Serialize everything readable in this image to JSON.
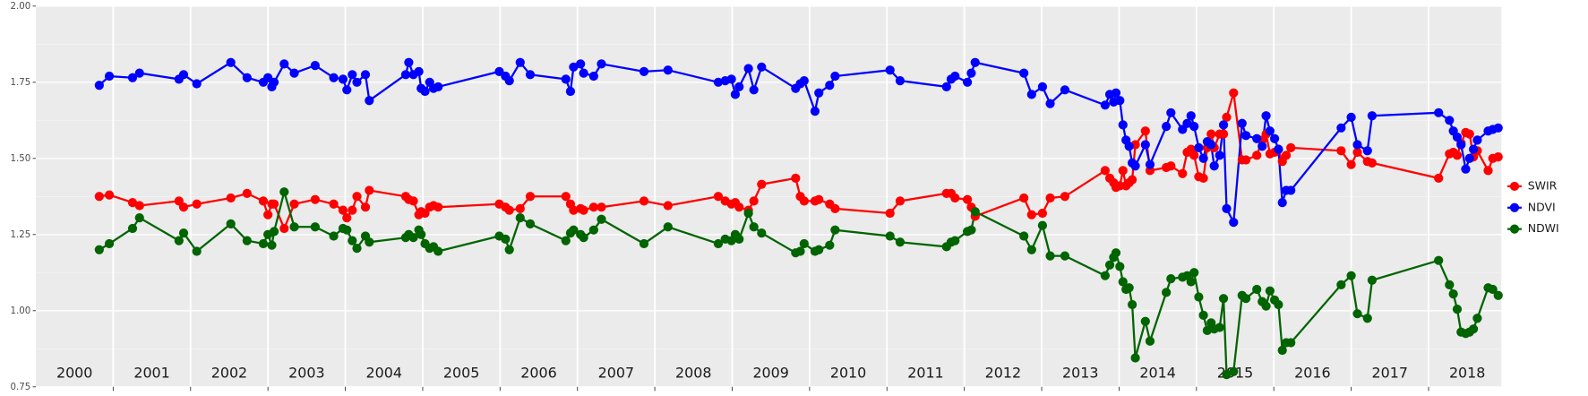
{
  "chart_data": {
    "type": "line",
    "x": [
      2000.82,
      2000.95,
      2001.25,
      2001.34,
      2001.85,
      2001.91,
      2002.08,
      2002.52,
      2002.73,
      2002.94,
      2003.0,
      2003.05,
      2003.08,
      2003.21,
      2003.34,
      2003.61,
      2003.85,
      2003.97,
      2004.02,
      2004.09,
      2004.15,
      2004.26,
      2004.31,
      2004.78,
      2004.82,
      2004.88,
      2004.95,
      2004.98,
      2005.03,
      2005.09,
      2005.14,
      2005.2,
      2005.99,
      2006.07,
      2006.12,
      2006.26,
      2006.39,
      2006.85,
      2006.91,
      2006.95,
      2007.04,
      2007.08,
      2007.21,
      2007.31,
      2007.86,
      2008.17,
      2008.82,
      2008.91,
      2008.99,
      2009.04,
      2009.09,
      2009.21,
      2009.28,
      2009.38,
      2009.82,
      2009.88,
      2009.93,
      2010.07,
      2010.12,
      2010.26,
      2010.33,
      2011.04,
      2011.17,
      2011.77,
      2011.83,
      2011.88,
      2012.04,
      2012.09,
      2012.14,
      2012.77,
      2012.87,
      2013.01,
      2013.11,
      2013.3,
      2013.82,
      2013.88,
      2013.93,
      2013.96,
      2014.01,
      2014.05,
      2014.09,
      2014.13,
      2014.17,
      2014.21,
      2014.34,
      2014.4,
      2014.61,
      2014.67,
      2014.82,
      2014.88,
      2014.93,
      2014.97,
      2015.03,
      2015.09,
      2015.14,
      2015.19,
      2015.23,
      2015.3,
      2015.35,
      2015.39,
      2015.48,
      2015.59,
      2015.64,
      2015.78,
      2015.85,
      2015.9,
      2015.95,
      2016.01,
      2016.06,
      2016.11,
      2016.16,
      2016.22,
      2016.87,
      2017.0,
      2017.08,
      2017.21,
      2017.27,
      2018.13,
      2018.27,
      2018.32,
      2018.37,
      2018.42,
      2018.48,
      2018.53,
      2018.58,
      2018.63,
      2018.77,
      2018.83,
      2018.9
    ],
    "series": [
      {
        "name": "SWIR",
        "color": "#ff0000",
        "values": [
          1.375,
          1.38,
          1.355,
          1.345,
          1.36,
          1.34,
          1.35,
          1.37,
          1.385,
          1.36,
          1.315,
          1.35,
          1.35,
          1.27,
          1.35,
          1.365,
          1.35,
          1.33,
          1.305,
          1.33,
          1.375,
          1.34,
          1.395,
          1.375,
          1.365,
          1.36,
          1.315,
          1.325,
          1.32,
          1.34,
          1.345,
          1.34,
          1.35,
          1.34,
          1.33,
          1.335,
          1.375,
          1.375,
          1.35,
          1.33,
          1.335,
          1.33,
          1.34,
          1.34,
          1.36,
          1.345,
          1.375,
          1.36,
          1.35,
          1.355,
          1.34,
          1.33,
          1.36,
          1.415,
          1.435,
          1.375,
          1.36,
          1.36,
          1.365,
          1.35,
          1.335,
          1.32,
          1.36,
          1.385,
          1.385,
          1.37,
          1.365,
          1.34,
          1.31,
          1.37,
          1.315,
          1.32,
          1.37,
          1.375,
          1.46,
          1.435,
          1.42,
          1.405,
          1.41,
          1.46,
          1.41,
          1.42,
          1.43,
          1.545,
          1.59,
          1.46,
          1.47,
          1.475,
          1.45,
          1.52,
          1.53,
          1.51,
          1.44,
          1.435,
          1.535,
          1.58,
          1.535,
          1.58,
          1.58,
          1.635,
          1.715,
          1.495,
          1.495,
          1.51,
          1.56,
          1.58,
          1.515,
          1.52,
          1.53,
          1.49,
          1.51,
          1.535,
          1.525,
          1.48,
          1.52,
          1.49,
          1.485,
          1.435,
          1.515,
          1.52,
          1.51,
          1.55,
          1.585,
          1.58,
          1.505,
          1.525,
          1.46,
          1.5,
          1.505
        ]
      },
      {
        "name": "NDVI",
        "color": "#0000ff",
        "values": [
          1.74,
          1.77,
          1.765,
          1.78,
          1.76,
          1.775,
          1.745,
          1.815,
          1.765,
          1.75,
          1.765,
          1.735,
          1.75,
          1.81,
          1.78,
          1.805,
          1.765,
          1.76,
          1.725,
          1.775,
          1.75,
          1.775,
          1.69,
          1.775,
          1.815,
          1.775,
          1.785,
          1.73,
          1.72,
          1.75,
          1.73,
          1.735,
          1.785,
          1.77,
          1.755,
          1.815,
          1.775,
          1.76,
          1.72,
          1.8,
          1.81,
          1.78,
          1.77,
          1.81,
          1.785,
          1.79,
          1.75,
          1.755,
          1.76,
          1.71,
          1.735,
          1.795,
          1.725,
          1.8,
          1.73,
          1.745,
          1.755,
          1.655,
          1.715,
          1.74,
          1.77,
          1.79,
          1.755,
          1.735,
          1.76,
          1.77,
          1.75,
          1.78,
          1.815,
          1.78,
          1.71,
          1.735,
          1.68,
          1.725,
          1.675,
          1.71,
          1.685,
          1.715,
          1.69,
          1.61,
          1.56,
          1.54,
          1.485,
          1.475,
          1.545,
          1.48,
          1.605,
          1.65,
          1.595,
          1.615,
          1.64,
          1.605,
          1.535,
          1.5,
          1.555,
          1.545,
          1.475,
          1.51,
          1.61,
          1.335,
          1.29,
          1.615,
          1.575,
          1.565,
          1.54,
          1.64,
          1.59,
          1.565,
          1.53,
          1.355,
          1.395,
          1.395,
          1.6,
          1.635,
          1.545,
          1.525,
          1.64,
          1.65,
          1.625,
          1.59,
          1.57,
          1.545,
          1.465,
          1.5,
          1.53,
          1.56,
          1.59,
          1.595,
          1.6
        ]
      },
      {
        "name": "NDWI",
        "color": "#006400",
        "values": [
          1.2,
          1.22,
          1.27,
          1.305,
          1.23,
          1.255,
          1.195,
          1.285,
          1.23,
          1.22,
          1.25,
          1.215,
          1.26,
          1.39,
          1.275,
          1.275,
          1.245,
          1.27,
          1.265,
          1.23,
          1.205,
          1.245,
          1.225,
          1.24,
          1.25,
          1.24,
          1.265,
          1.25,
          1.22,
          1.205,
          1.21,
          1.195,
          1.245,
          1.235,
          1.2,
          1.305,
          1.285,
          1.23,
          1.255,
          1.265,
          1.25,
          1.24,
          1.265,
          1.3,
          1.22,
          1.275,
          1.22,
          1.235,
          1.23,
          1.25,
          1.235,
          1.32,
          1.275,
          1.255,
          1.19,
          1.195,
          1.22,
          1.195,
          1.2,
          1.215,
          1.265,
          1.245,
          1.225,
          1.21,
          1.225,
          1.23,
          1.26,
          1.265,
          1.325,
          1.245,
          1.2,
          1.28,
          1.18,
          1.18,
          1.115,
          1.15,
          1.175,
          1.19,
          1.145,
          1.095,
          1.07,
          1.075,
          1.02,
          0.845,
          0.965,
          0.9,
          1.06,
          1.105,
          1.11,
          1.115,
          1.095,
          1.125,
          1.045,
          0.985,
          0.935,
          0.96,
          0.94,
          0.945,
          1.04,
          0.79,
          0.8,
          1.05,
          1.04,
          1.07,
          1.03,
          1.015,
          1.065,
          1.035,
          1.02,
          0.87,
          0.895,
          0.895,
          1.085,
          1.115,
          0.99,
          0.975,
          1.1,
          1.165,
          1.085,
          1.055,
          1.005,
          0.93,
          0.925,
          0.93,
          0.94,
          0.975,
          1.075,
          1.07,
          1.05
        ]
      }
    ],
    "xlim": [
      2000,
      2018.94
    ],
    "xticks": [
      2001,
      2002,
      2003,
      2004,
      2005,
      2006,
      2007,
      2008,
      2009,
      2010,
      2011,
      2012,
      2013,
      2014,
      2015,
      2016,
      2017,
      2018
    ],
    "ylim": [
      0.75,
      2.0
    ],
    "yticks": [
      0.75,
      {
        "value": 1.0,
        "label": "1.00"
      },
      1.25,
      {
        "value": 1.5,
        "label": "1.50"
      },
      1.75,
      {
        "value": 2.0,
        "label": "2.00"
      }
    ],
    "grid": true,
    "legend": "right",
    "annotations": [
      {
        "text": "2000",
        "x": 2000.5
      },
      {
        "text": "2001",
        "x": 2001.5
      },
      {
        "text": "2002",
        "x": 2002.5
      },
      {
        "text": "2003",
        "x": 2003.5
      },
      {
        "text": "2004",
        "x": 2004.5
      },
      {
        "text": "2005",
        "x": 2005.5
      },
      {
        "text": "2006",
        "x": 2006.5
      },
      {
        "text": "2007",
        "x": 2007.5
      },
      {
        "text": "2008",
        "x": 2008.5
      },
      {
        "text": "2009",
        "x": 2009.5
      },
      {
        "text": "2010",
        "x": 2010.5
      },
      {
        "text": "2011",
        "x": 2011.5
      },
      {
        "text": "2012",
        "x": 2012.5
      },
      {
        "text": "2013",
        "x": 2013.5
      },
      {
        "text": "2014",
        "x": 2014.5
      },
      {
        "text": "2015",
        "x": 2015.5
      },
      {
        "text": "2016",
        "x": 2016.5
      },
      {
        "text": "2017",
        "x": 2017.5
      },
      {
        "text": "2018",
        "x": 2018.5
      }
    ]
  }
}
